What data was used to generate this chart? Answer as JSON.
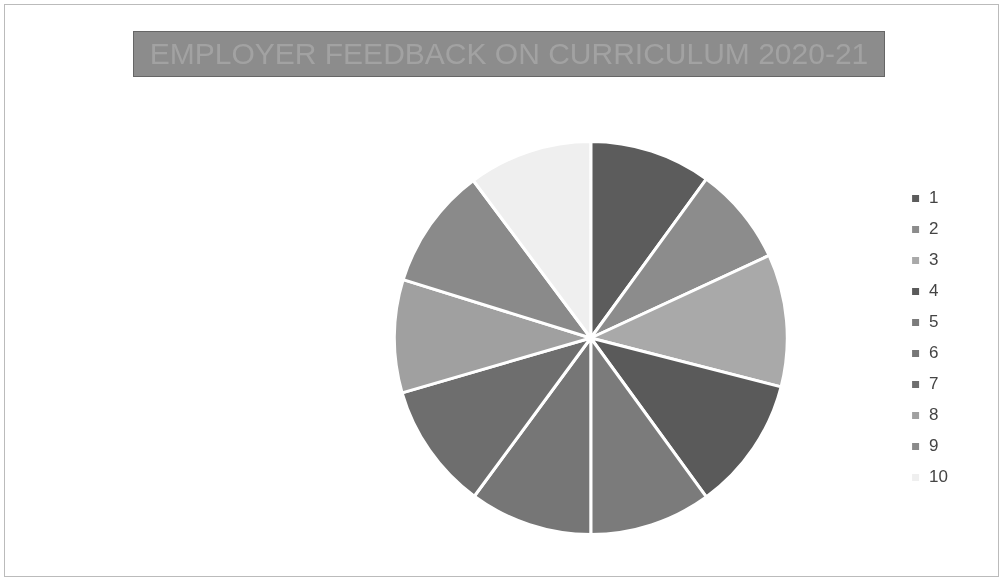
{
  "chart_data": {
    "type": "pie",
    "title": "EMPLOYER FEEDBACK ON CURRICULUM 2020-21",
    "categories": [
      "1",
      "2",
      "3",
      "4",
      "5",
      "6",
      "7",
      "8",
      "9",
      "10"
    ],
    "values": [
      10.0,
      8.1,
      10.9,
      11.0,
      10.0,
      10.1,
      10.4,
      9.3,
      10.0,
      10.2
    ],
    "colors": [
      "#5c5c5c",
      "#8c8c8c",
      "#a9a9a9",
      "#5a5a5a",
      "#7b7b7b",
      "#767676",
      "#6e6e6e",
      "#a0a0a0",
      "#8a8a8a",
      "#efefef"
    ],
    "legend": "right"
  }
}
